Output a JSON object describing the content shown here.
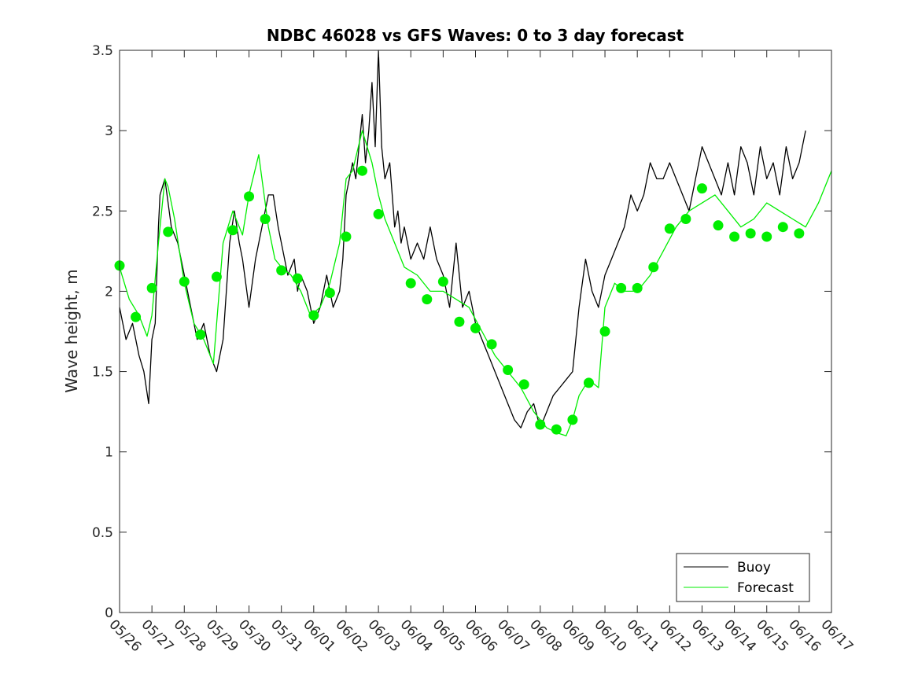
{
  "chart_data": {
    "type": "line",
    "title": "NDBC 46028 vs GFS Waves: 0 to 3 day forecast",
    "xlabel": "",
    "ylabel": "Wave height, m",
    "ylim": [
      0,
      3.5
    ],
    "xlim": [
      "05/26",
      "06/17"
    ],
    "x_tick_labels": [
      "05/26",
      "05/27",
      "05/28",
      "05/29",
      "05/30",
      "05/31",
      "06/01",
      "06/02",
      "06/03",
      "06/04",
      "06/05",
      "06/06",
      "06/07",
      "06/08",
      "06/09",
      "06/10",
      "06/11",
      "06/12",
      "06/13",
      "06/14",
      "06/15",
      "06/16",
      "06/17"
    ],
    "y_tick_labels": [
      "0",
      "0.5",
      "1",
      "1.5",
      "2",
      "2.5",
      "3",
      "3.5"
    ],
    "y_ticks": [
      0,
      0.5,
      1,
      1.5,
      2,
      2.5,
      3,
      3.5
    ],
    "legend": {
      "placement": "bottom-right",
      "entries": [
        "Buoy",
        "Forecast"
      ]
    },
    "colors": {
      "buoy": "#000000",
      "forecast": "#00ee00",
      "marker": "#00ee00"
    },
    "series": [
      {
        "name": "Buoy",
        "style": "line",
        "x_day": [
          0.0,
          0.2,
          0.4,
          0.6,
          0.75,
          0.9,
          1.0,
          1.1,
          1.2,
          1.25,
          1.4,
          1.6,
          1.8,
          2.0,
          2.2,
          2.4,
          2.6,
          2.8,
          3.0,
          3.2,
          3.4,
          3.55,
          3.7,
          3.8,
          4.0,
          4.2,
          4.4,
          4.6,
          4.75,
          4.9,
          5.0,
          5.2,
          5.4,
          5.5,
          5.6,
          5.8,
          6.0,
          6.2,
          6.4,
          6.6,
          6.8,
          6.9,
          7.0,
          7.2,
          7.3,
          7.4,
          7.5,
          7.6,
          7.7,
          7.8,
          7.9,
          8.0,
          8.1,
          8.2,
          8.35,
          8.5,
          8.6,
          8.7,
          8.8,
          9.0,
          9.2,
          9.4,
          9.6,
          9.8,
          10.0,
          10.2,
          10.4,
          10.6,
          10.8,
          11.0,
          11.2,
          11.4,
          11.6,
          11.8,
          12.0,
          12.2,
          12.4,
          12.6,
          12.8,
          13.0,
          13.2,
          13.4,
          13.6,
          13.8,
          14.0,
          14.2,
          14.4,
          14.6,
          14.8,
          15.0,
          15.2,
          15.4,
          15.6,
          15.8,
          16.0,
          16.2,
          16.4,
          16.6,
          16.8,
          17.0,
          17.2,
          17.4,
          17.6,
          17.8,
          18.0,
          18.2,
          18.4,
          18.6,
          18.8,
          19.0,
          19.2,
          19.4,
          19.6,
          19.8,
          20.0,
          20.2,
          20.4,
          20.6,
          20.8,
          21.0,
          21.2
        ],
        "values": [
          1.9,
          1.7,
          1.8,
          1.6,
          1.5,
          1.3,
          1.7,
          1.8,
          2.4,
          2.6,
          2.7,
          2.4,
          2.3,
          2.1,
          1.9,
          1.7,
          1.8,
          1.6,
          1.5,
          1.7,
          2.3,
          2.5,
          2.3,
          2.2,
          1.9,
          2.2,
          2.4,
          2.6,
          2.6,
          2.4,
          2.3,
          2.1,
          2.2,
          2.0,
          2.1,
          2.0,
          1.8,
          1.9,
          2.1,
          1.9,
          2.0,
          2.2,
          2.6,
          2.8,
          2.7,
          2.9,
          3.1,
          2.8,
          3.0,
          3.3,
          2.9,
          3.5,
          2.9,
          2.7,
          2.8,
          2.4,
          2.5,
          2.3,
          2.4,
          2.2,
          2.3,
          2.2,
          2.4,
          2.2,
          2.1,
          1.9,
          2.3,
          1.9,
          2.0,
          1.8,
          1.7,
          1.6,
          1.5,
          1.4,
          1.3,
          1.2,
          1.15,
          1.25,
          1.3,
          1.15,
          1.25,
          1.35,
          1.4,
          1.45,
          1.5,
          1.9,
          2.2,
          2.0,
          1.9,
          2.1,
          2.2,
          2.3,
          2.4,
          2.6,
          2.5,
          2.6,
          2.8,
          2.7,
          2.7,
          2.8,
          2.7,
          2.6,
          2.5,
          2.7,
          2.9,
          2.8,
          2.7,
          2.6,
          2.8,
          2.6,
          2.9,
          2.8,
          2.6,
          2.9,
          2.7,
          2.8,
          2.6,
          2.9,
          2.7,
          2.8,
          3.0
        ]
      },
      {
        "name": "Forecast",
        "style": "line",
        "x_day": [
          0.0,
          0.3,
          0.6,
          0.85,
          1.0,
          1.2,
          1.4,
          1.5,
          1.7,
          2.0,
          2.3,
          2.6,
          2.9,
          3.0,
          3.2,
          3.5,
          3.8,
          4.0,
          4.3,
          4.6,
          4.8,
          5.0,
          5.3,
          5.6,
          5.9,
          6.2,
          6.5,
          6.8,
          7.0,
          7.2,
          7.5,
          7.8,
          8.0,
          8.2,
          8.5,
          8.8,
          9.2,
          9.6,
          10.0,
          10.4,
          10.8,
          11.2,
          11.6,
          12.0,
          12.4,
          12.8,
          13.2,
          13.5,
          13.8,
          14.0,
          14.2,
          14.5,
          14.8,
          15.0,
          15.3,
          15.6,
          16.0,
          16.4,
          16.8,
          17.2,
          17.6,
          18.0,
          18.4,
          18.8,
          19.2,
          19.6,
          20.0,
          20.4,
          20.8,
          21.2,
          21.6,
          22.0
        ],
        "values": [
          2.15,
          1.95,
          1.85,
          1.72,
          1.85,
          2.3,
          2.7,
          2.65,
          2.45,
          2.05,
          1.8,
          1.7,
          1.55,
          1.8,
          2.3,
          2.5,
          2.35,
          2.6,
          2.85,
          2.4,
          2.2,
          2.15,
          2.1,
          2.0,
          1.85,
          1.9,
          2.05,
          2.3,
          2.7,
          2.75,
          3.0,
          2.8,
          2.6,
          2.45,
          2.3,
          2.15,
          2.1,
          2.0,
          2.0,
          1.95,
          1.9,
          1.75,
          1.6,
          1.5,
          1.4,
          1.25,
          1.15,
          1.12,
          1.1,
          1.2,
          1.35,
          1.45,
          1.4,
          1.9,
          2.05,
          2.0,
          2.0,
          2.1,
          2.25,
          2.4,
          2.5,
          2.55,
          2.6,
          2.5,
          2.4,
          2.45,
          2.55,
          2.5,
          2.45,
          2.4,
          2.55,
          2.75
        ]
      },
      {
        "name": "Forecast",
        "style": "markers",
        "x_day": [
          0.0,
          0.5,
          1.0,
          1.5,
          2.0,
          2.5,
          3.0,
          3.5,
          4.0,
          4.5,
          5.0,
          5.5,
          6.0,
          6.5,
          7.0,
          7.5,
          8.0,
          9.0,
          9.5,
          10.0,
          10.5,
          11.0,
          11.5,
          12.0,
          12.5,
          13.0,
          13.5,
          14.0,
          14.5,
          15.0,
          15.5,
          16.0,
          16.5,
          17.0,
          17.5,
          18.0,
          18.5,
          19.0,
          19.5,
          20.0,
          20.5,
          21.0
        ],
        "values": [
          2.16,
          1.84,
          2.02,
          2.37,
          2.06,
          1.73,
          2.09,
          2.38,
          2.59,
          2.45,
          2.13,
          2.08,
          1.85,
          1.99,
          2.34,
          2.75,
          2.48,
          2.05,
          1.95,
          2.06,
          1.81,
          1.77,
          1.67,
          1.51,
          1.42,
          1.17,
          1.14,
          1.2,
          1.43,
          1.75,
          2.02,
          2.02,
          2.15,
          2.39,
          2.45,
          2.64,
          2.41,
          2.34,
          2.36,
          2.34,
          2.4,
          2.36
        ]
      }
    ]
  }
}
